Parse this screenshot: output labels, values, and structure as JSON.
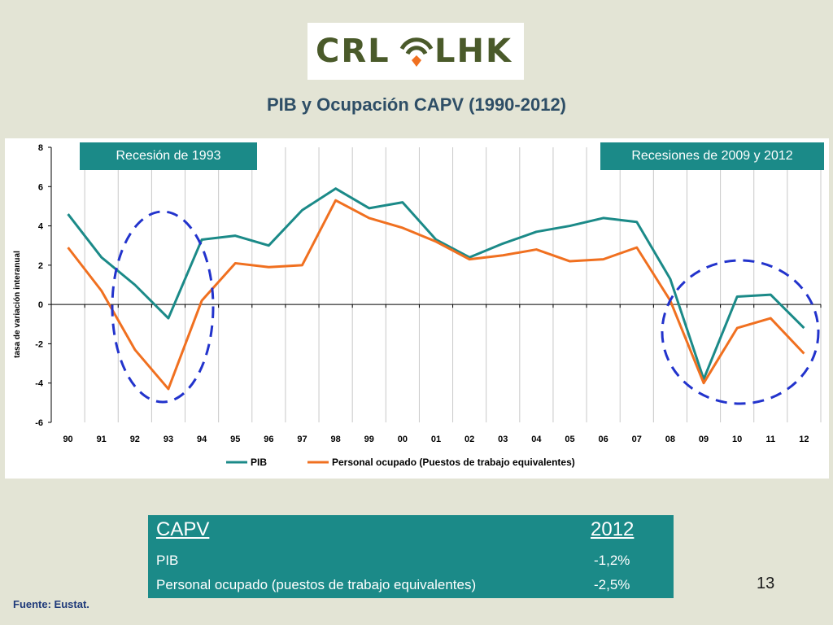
{
  "logo": {
    "left": "CRL",
    "right": "LHK"
  },
  "title": "PIB y Ocupación CAPV (1990-2012)",
  "callouts": {
    "left": "Recesión de 1993",
    "right": "Recesiones de 2009 y 2012"
  },
  "chart_data": {
    "type": "line",
    "title": "",
    "ylabel": "tasa de variación interanual",
    "xlabel": "",
    "ylim": [
      -6,
      8
    ],
    "yticks": [
      "8",
      "6",
      "4",
      "2",
      "0",
      "-2",
      "-4",
      "-6"
    ],
    "categories": [
      "90",
      "91",
      "92",
      "93",
      "94",
      "95",
      "96",
      "97",
      "98",
      "99",
      "00",
      "01",
      "02",
      "03",
      "04",
      "05",
      "06",
      "07",
      "08",
      "09",
      "10",
      "11",
      "12"
    ],
    "series": [
      {
        "name": "PIB",
        "color": "#1b8a88",
        "values": [
          4.6,
          2.4,
          1.0,
          -0.7,
          3.3,
          3.5,
          3.0,
          4.8,
          5.9,
          4.9,
          5.2,
          3.3,
          2.4,
          3.1,
          3.7,
          4.0,
          4.4,
          4.2,
          1.3,
          -3.8,
          0.4,
          0.5,
          -1.2
        ]
      },
      {
        "name": "Personal ocupado (Puestos de trabajo equivalentes)",
        "color": "#f07020",
        "values": [
          2.9,
          0.7,
          -2.3,
          -4.3,
          0.2,
          2.1,
          1.9,
          2.0,
          5.3,
          4.4,
          3.9,
          3.2,
          2.3,
          2.5,
          2.8,
          2.2,
          2.3,
          2.9,
          0.2,
          -4.0,
          -1.2,
          -0.7,
          -2.5
        ]
      }
    ],
    "grid": true,
    "legend": "bottom"
  },
  "table": {
    "header": {
      "label": "CAPV",
      "year": "2012"
    },
    "rows": [
      {
        "label": "PIB",
        "value": "-1,2%"
      },
      {
        "label": "Personal ocupado (puestos de trabajo equivalentes)",
        "value": "-2,5%"
      }
    ]
  },
  "page_number": "13",
  "source": "Fuente: Eustat."
}
